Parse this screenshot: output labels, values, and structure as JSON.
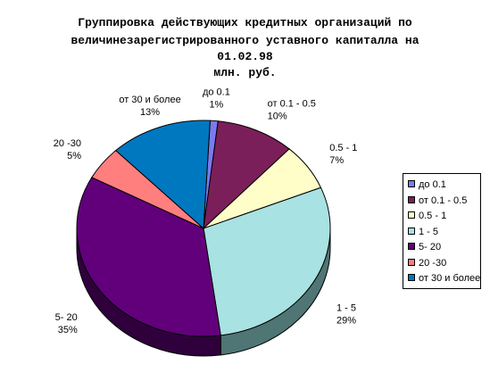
{
  "chart_data": {
    "type": "pie",
    "title_lines": [
      "Группировка действующих кредитных организаций по",
      "величинезарегистрированного уставного капиталла на",
      "01.02.98",
      "млн. руб."
    ],
    "slices": [
      {
        "name": "до 0.1",
        "label": "до 0.1",
        "value": 1,
        "pct_label": "1%",
        "color": "#7b7bef",
        "dark": "#3e3e78"
      },
      {
        "name": "от 0.1 -  0.5",
        "label": "от 0.1 -  0.5",
        "value": 10,
        "pct_label": "10%",
        "color": "#7b1f5a",
        "dark": "#3e102d"
      },
      {
        "name": "0.5 - 1",
        "label": "0.5 - 1",
        "value": 7,
        "pct_label": "7%",
        "color": "#fffdc8",
        "dark": "#80806a"
      },
      {
        "name": "1 - 5",
        "label": "1 - 5",
        "value": 29,
        "pct_label": "29%",
        "color": "#a8e2e2",
        "dark": "#4f7575"
      },
      {
        "name": "5- 20",
        "label": "5- 20",
        "value": 35,
        "pct_label": "35%",
        "color": "#62007b",
        "dark": "#30003d"
      },
      {
        "name": "20 -30",
        "label": "20 -30",
        "value": 5,
        "pct_label": "5%",
        "color": "#ff7f7f",
        "dark": "#803f3f"
      },
      {
        "name": "от 30 и более",
        "label": "от 30 и более",
        "value": 13,
        "pct_label": "13%",
        "color": "#0078c0",
        "dark": "#003c60"
      }
    ],
    "legend_position": "right"
  }
}
